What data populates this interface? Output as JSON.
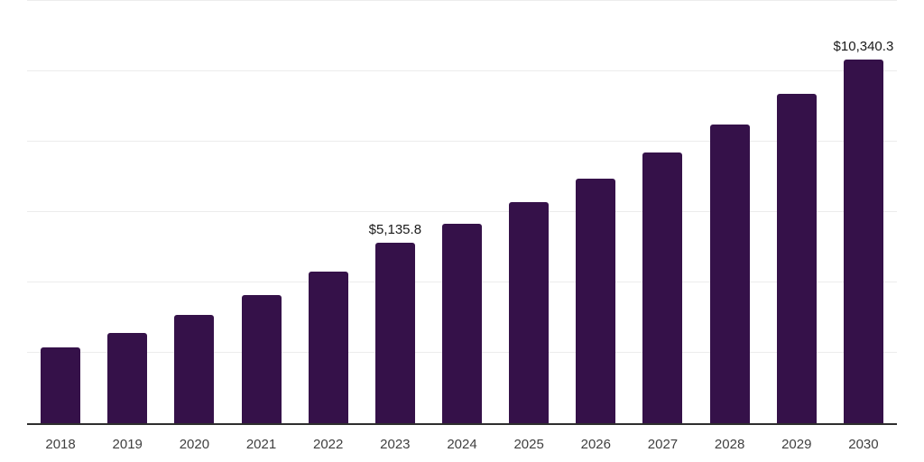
{
  "chart_data": {
    "type": "bar",
    "title": "",
    "xlabel": "",
    "ylabel": "",
    "categories": [
      "2018",
      "2019",
      "2020",
      "2021",
      "2022",
      "2023",
      "2024",
      "2025",
      "2026",
      "2027",
      "2028",
      "2029",
      "2030"
    ],
    "values": [
      2150,
      2575,
      3075,
      3640,
      4310,
      5135.8,
      5665,
      6280,
      6950,
      7690,
      8490,
      9360,
      10340.3
    ],
    "data_labels": {
      "2023": "$5,135.8",
      "2030": "$10,340.3"
    },
    "ylim": [
      0,
      12000
    ],
    "gridlines": [
      2000,
      4000,
      6000,
      8000,
      10000,
      12000
    ],
    "grid": true,
    "legend_position": "none",
    "y_axis_labels_visible": false
  },
  "colors": {
    "bar": "#351149",
    "gridline": "#ececec",
    "axis_line": "#2e2e2e",
    "tick_label": "#404040",
    "data_label": "#1a1a1a",
    "background": "#ffffff"
  }
}
